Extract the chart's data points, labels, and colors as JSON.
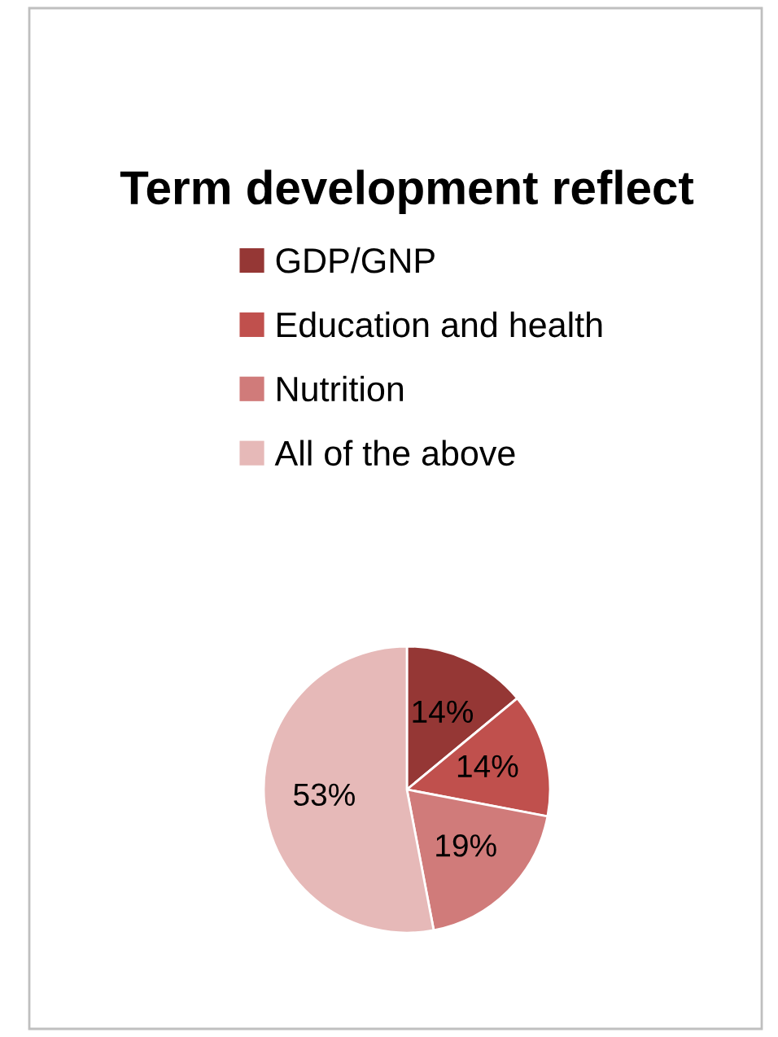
{
  "chart_data": {
    "type": "pie",
    "title": "Term development reflect",
    "categories": [
      "GDP/GNP",
      "Education and health",
      "Nutrition",
      "All of the above"
    ],
    "values": [
      14,
      14,
      19,
      53
    ],
    "colors": [
      "#953735",
      "#c0504d",
      "#d07b7a",
      "#e6b9b8"
    ],
    "value_labels": [
      "14%",
      "14%",
      "19%",
      "53%"
    ],
    "legend": "top"
  }
}
